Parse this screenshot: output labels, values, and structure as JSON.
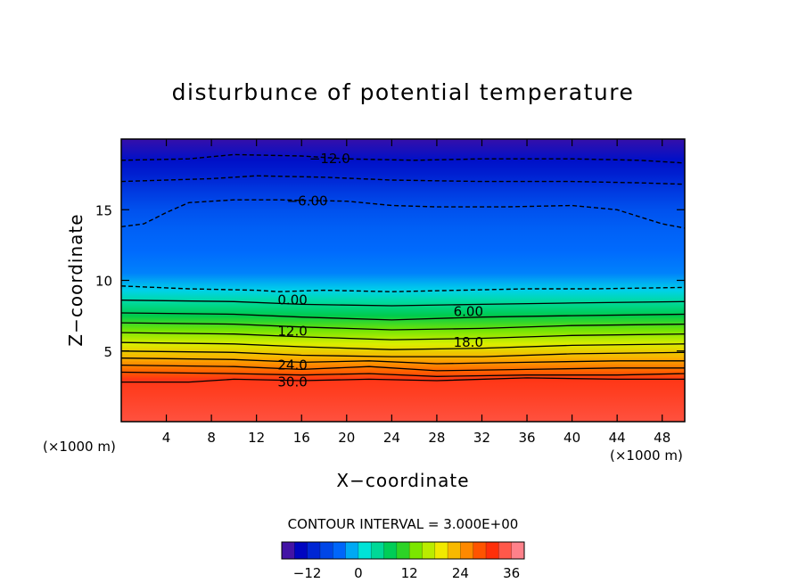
{
  "chart_data": {
    "type": "heatmap",
    "title": "disturbunce of potential temperature",
    "xlabel": "X−coordinate",
    "ylabel": "Z−coordinate",
    "x_unit_left": "(×1000 m)",
    "x_unit_right": "(×1000 m)",
    "xlim": [
      0,
      50
    ],
    "ylim": [
      0,
      20
    ],
    "x_ticks": [
      4,
      8,
      12,
      16,
      20,
      24,
      28,
      32,
      36,
      40,
      44,
      48
    ],
    "y_ticks": [
      5,
      10,
      15
    ],
    "contour_interval_label": "CONTOUR INTERVAL = 3.000E+00",
    "colorbar": {
      "min": -18,
      "max": 39,
      "step": 3,
      "tick_values": [
        -12,
        0,
        12,
        24,
        36
      ],
      "tick_labels": [
        "−12",
        "0",
        "12",
        "24",
        "36"
      ]
    },
    "profile": [
      {
        "z": 0.0,
        "value": 34
      },
      {
        "z": 3.0,
        "value": 32
      },
      {
        "z": 3.5,
        "value": 28
      },
      {
        "z": 4.5,
        "value": 23
      },
      {
        "z": 5.5,
        "value": 18
      },
      {
        "z": 6.5,
        "value": 13
      },
      {
        "z": 7.5,
        "value": 8
      },
      {
        "z": 8.5,
        "value": 4
      },
      {
        "z": 9.3,
        "value": 0
      },
      {
        "z": 10.5,
        "value": -3
      },
      {
        "z": 12.0,
        "value": -4
      },
      {
        "z": 13.5,
        "value": -5
      },
      {
        "z": 15.0,
        "value": -6.5
      },
      {
        "z": 16.5,
        "value": -9
      },
      {
        "z": 17.5,
        "value": -11
      },
      {
        "z": 18.5,
        "value": -12.5
      },
      {
        "z": 20.0,
        "value": -16
      }
    ],
    "contour_labels": [
      {
        "text": "−12.0",
        "x": 18.5,
        "z": 18.6
      },
      {
        "text": "−6.00",
        "x": 16.5,
        "z": 15.6
      },
      {
        "text": "0.00",
        "x": 15.2,
        "z": 8.6
      },
      {
        "text": "6.00",
        "x": 30.8,
        "z": 7.8
      },
      {
        "text": "12.0",
        "x": 15.2,
        "z": 6.4
      },
      {
        "text": "18.0",
        "x": 30.8,
        "z": 5.6
      },
      {
        "text": "24.0",
        "x": 15.2,
        "z": 4.0
      },
      {
        "text": "30.0",
        "x": 15.2,
        "z": 2.8
      }
    ],
    "contour_lines": [
      {
        "value": -12,
        "dashed": true,
        "points": [
          [
            0,
            18.5
          ],
          [
            6,
            18.6
          ],
          [
            10,
            18.9
          ],
          [
            16,
            18.8
          ],
          [
            20,
            18.6
          ],
          [
            26,
            18.5
          ],
          [
            32,
            18.6
          ],
          [
            40,
            18.6
          ],
          [
            46,
            18.5
          ],
          [
            50,
            18.3
          ]
        ]
      },
      {
        "value": -9,
        "dashed": true,
        "points": [
          [
            0,
            17.0
          ],
          [
            8,
            17.2
          ],
          [
            12,
            17.4
          ],
          [
            18,
            17.3
          ],
          [
            24,
            17.1
          ],
          [
            32,
            17.0
          ],
          [
            40,
            17.0
          ],
          [
            46,
            16.9
          ],
          [
            50,
            16.8
          ]
        ]
      },
      {
        "value": -6,
        "dashed": true,
        "points": [
          [
            0,
            13.8
          ],
          [
            2,
            14.0
          ],
          [
            4,
            14.8
          ],
          [
            6,
            15.5
          ],
          [
            10,
            15.7
          ],
          [
            14,
            15.7
          ],
          [
            20,
            15.6
          ],
          [
            24,
            15.3
          ],
          [
            28,
            15.2
          ],
          [
            34,
            15.2
          ],
          [
            40,
            15.3
          ],
          [
            44,
            15.0
          ],
          [
            46,
            14.5
          ],
          [
            48,
            14.0
          ],
          [
            50,
            13.7
          ]
        ]
      },
      {
        "value": 0,
        "dashed": true,
        "points": [
          [
            0,
            9.6
          ],
          [
            6,
            9.4
          ],
          [
            12,
            9.3
          ],
          [
            14,
            9.2
          ],
          [
            18,
            9.3
          ],
          [
            24,
            9.2
          ],
          [
            30,
            9.3
          ],
          [
            36,
            9.4
          ],
          [
            42,
            9.4
          ],
          [
            50,
            9.5
          ]
        ]
      },
      {
        "value": 3,
        "dashed": false,
        "points": [
          [
            0,
            8.6
          ],
          [
            10,
            8.5
          ],
          [
            16,
            8.3
          ],
          [
            24,
            8.2
          ],
          [
            32,
            8.3
          ],
          [
            40,
            8.4
          ],
          [
            50,
            8.5
          ]
        ]
      },
      {
        "value": 6,
        "dashed": false,
        "points": [
          [
            0,
            7.7
          ],
          [
            10,
            7.6
          ],
          [
            16,
            7.4
          ],
          [
            24,
            7.2
          ],
          [
            32,
            7.4
          ],
          [
            40,
            7.5
          ],
          [
            50,
            7.6
          ]
        ]
      },
      {
        "value": 9,
        "dashed": false,
        "points": [
          [
            0,
            7.0
          ],
          [
            10,
            6.9
          ],
          [
            16,
            6.7
          ],
          [
            24,
            6.5
          ],
          [
            32,
            6.6
          ],
          [
            40,
            6.8
          ],
          [
            50,
            6.9
          ]
        ]
      },
      {
        "value": 12,
        "dashed": false,
        "points": [
          [
            0,
            6.3
          ],
          [
            10,
            6.2
          ],
          [
            16,
            6.0
          ],
          [
            24,
            5.8
          ],
          [
            32,
            5.9
          ],
          [
            40,
            6.1
          ],
          [
            50,
            6.2
          ]
        ]
      },
      {
        "value": 15,
        "dashed": false,
        "points": [
          [
            0,
            5.6
          ],
          [
            10,
            5.5
          ],
          [
            16,
            5.3
          ],
          [
            24,
            5.1
          ],
          [
            32,
            5.2
          ],
          [
            40,
            5.4
          ],
          [
            50,
            5.5
          ]
        ]
      },
      {
        "value": 18,
        "dashed": false,
        "points": [
          [
            0,
            5.0
          ],
          [
            10,
            4.9
          ],
          [
            16,
            4.7
          ],
          [
            24,
            4.6
          ],
          [
            32,
            4.6
          ],
          [
            40,
            4.8
          ],
          [
            50,
            4.9
          ]
        ]
      },
      {
        "value": 21,
        "dashed": false,
        "points": [
          [
            0,
            4.5
          ],
          [
            10,
            4.4
          ],
          [
            16,
            4.2
          ],
          [
            22,
            4.3
          ],
          [
            28,
            4.1
          ],
          [
            36,
            4.2
          ],
          [
            44,
            4.3
          ],
          [
            50,
            4.3
          ]
        ]
      },
      {
        "value": 24,
        "dashed": false,
        "points": [
          [
            0,
            4.0
          ],
          [
            10,
            3.9
          ],
          [
            16,
            3.7
          ],
          [
            22,
            3.9
          ],
          [
            28,
            3.6
          ],
          [
            36,
            3.7
          ],
          [
            44,
            3.8
          ],
          [
            50,
            3.8
          ]
        ]
      },
      {
        "value": 27,
        "dashed": false,
        "points": [
          [
            0,
            3.5
          ],
          [
            10,
            3.4
          ],
          [
            16,
            3.3
          ],
          [
            22,
            3.4
          ],
          [
            28,
            3.2
          ],
          [
            36,
            3.3
          ],
          [
            44,
            3.3
          ],
          [
            50,
            3.4
          ]
        ]
      },
      {
        "value": 30,
        "dashed": false,
        "points": [
          [
            0,
            2.8
          ],
          [
            6,
            2.8
          ],
          [
            10,
            3.0
          ],
          [
            16,
            2.9
          ],
          [
            22,
            3.0
          ],
          [
            28,
            2.9
          ],
          [
            36,
            3.1
          ],
          [
            44,
            3.0
          ],
          [
            50,
            3.0
          ]
        ]
      }
    ]
  }
}
